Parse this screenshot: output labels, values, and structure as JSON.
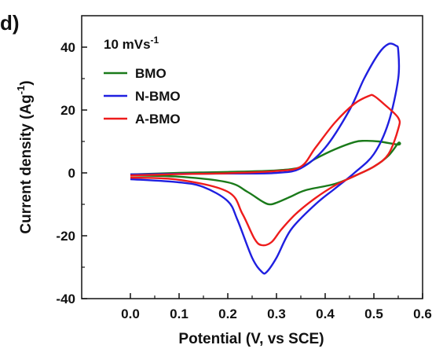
{
  "panel_label": "d)",
  "chart_data": {
    "type": "line",
    "xlabel": "Potential (V, vs SCE)",
    "ylabel_main": "Current density (Ag",
    "ylabel_sup": "-1",
    "ylabel_close": ")",
    "xlim": [
      -0.1,
      0.6
    ],
    "ylim": [
      -40,
      50
    ],
    "x_ticks": [
      0.0,
      0.1,
      0.2,
      0.3,
      0.4,
      0.5,
      0.6
    ],
    "x_tick_labels": [
      "0.0",
      "0.1",
      "0.2",
      "0.3",
      "0.4",
      "0.5",
      "0.6"
    ],
    "y_ticks": [
      -40,
      -20,
      0,
      20,
      40
    ],
    "y_tick_labels": [
      "-40",
      "-20",
      "0",
      "20",
      "40"
    ],
    "grid": false,
    "legend_position": "top-left",
    "scan_rate": {
      "value": "10 mVs",
      "sup": "-1"
    },
    "series": [
      {
        "name": "BMO",
        "color": "#1a7a1a",
        "x": [
          0.0,
          0.1,
          0.2,
          0.3,
          0.35,
          0.38,
          0.42,
          0.46,
          0.48,
          0.51,
          0.55,
          0.55,
          0.53,
          0.5,
          0.46,
          0.42,
          0.36,
          0.33,
          0.3,
          0.285,
          0.27,
          0.24,
          0.2,
          0.1,
          0.0
        ],
        "y": [
          -0.5,
          0.0,
          0.3,
          0.8,
          1.8,
          4.5,
          7.5,
          9.8,
          10.2,
          10.0,
          9.0,
          9.5,
          5.5,
          2.0,
          -1.0,
          -3.5,
          -5.5,
          -7.5,
          -9.5,
          -10.0,
          -9.0,
          -6.0,
          -3.0,
          -1.2,
          -0.8
        ]
      },
      {
        "name": "N-BMO",
        "color": "#1f1fe0",
        "x": [
          0.0,
          0.1,
          0.2,
          0.3,
          0.35,
          0.4,
          0.45,
          0.48,
          0.51,
          0.53,
          0.545,
          0.55,
          0.55,
          0.53,
          0.5,
          0.46,
          0.42,
          0.38,
          0.33,
          0.3,
          0.28,
          0.27,
          0.25,
          0.22,
          0.2,
          0.15,
          0.1,
          0.0
        ],
        "y": [
          -0.5,
          -0.3,
          -0.2,
          0.0,
          1.5,
          8.0,
          20.0,
          30.0,
          38.0,
          41.0,
          40.5,
          39.0,
          30.0,
          16.0,
          6.0,
          0.0,
          -5.0,
          -10.0,
          -18.0,
          -27.0,
          -31.5,
          -31.5,
          -27.0,
          -15.0,
          -9.0,
          -4.5,
          -3.0,
          -2.0
        ]
      },
      {
        "name": "A-BMO",
        "color": "#ee1c1c",
        "x": [
          0.0,
          0.1,
          0.2,
          0.3,
          0.35,
          0.38,
          0.42,
          0.46,
          0.49,
          0.5,
          0.52,
          0.55,
          0.55,
          0.53,
          0.5,
          0.46,
          0.42,
          0.38,
          0.34,
          0.31,
          0.29,
          0.27,
          0.255,
          0.23,
          0.2,
          0.1,
          0.0
        ],
        "y": [
          -0.8,
          -0.4,
          -0.1,
          0.6,
          2.0,
          8.0,
          16.0,
          22.0,
          24.5,
          24.5,
          22.0,
          17.5,
          14.0,
          6.0,
          2.0,
          -1.0,
          -4.0,
          -8.0,
          -13.0,
          -18.0,
          -22.0,
          -23.0,
          -21.0,
          -13.0,
          -6.0,
          -2.2,
          -1.5
        ]
      }
    ]
  }
}
